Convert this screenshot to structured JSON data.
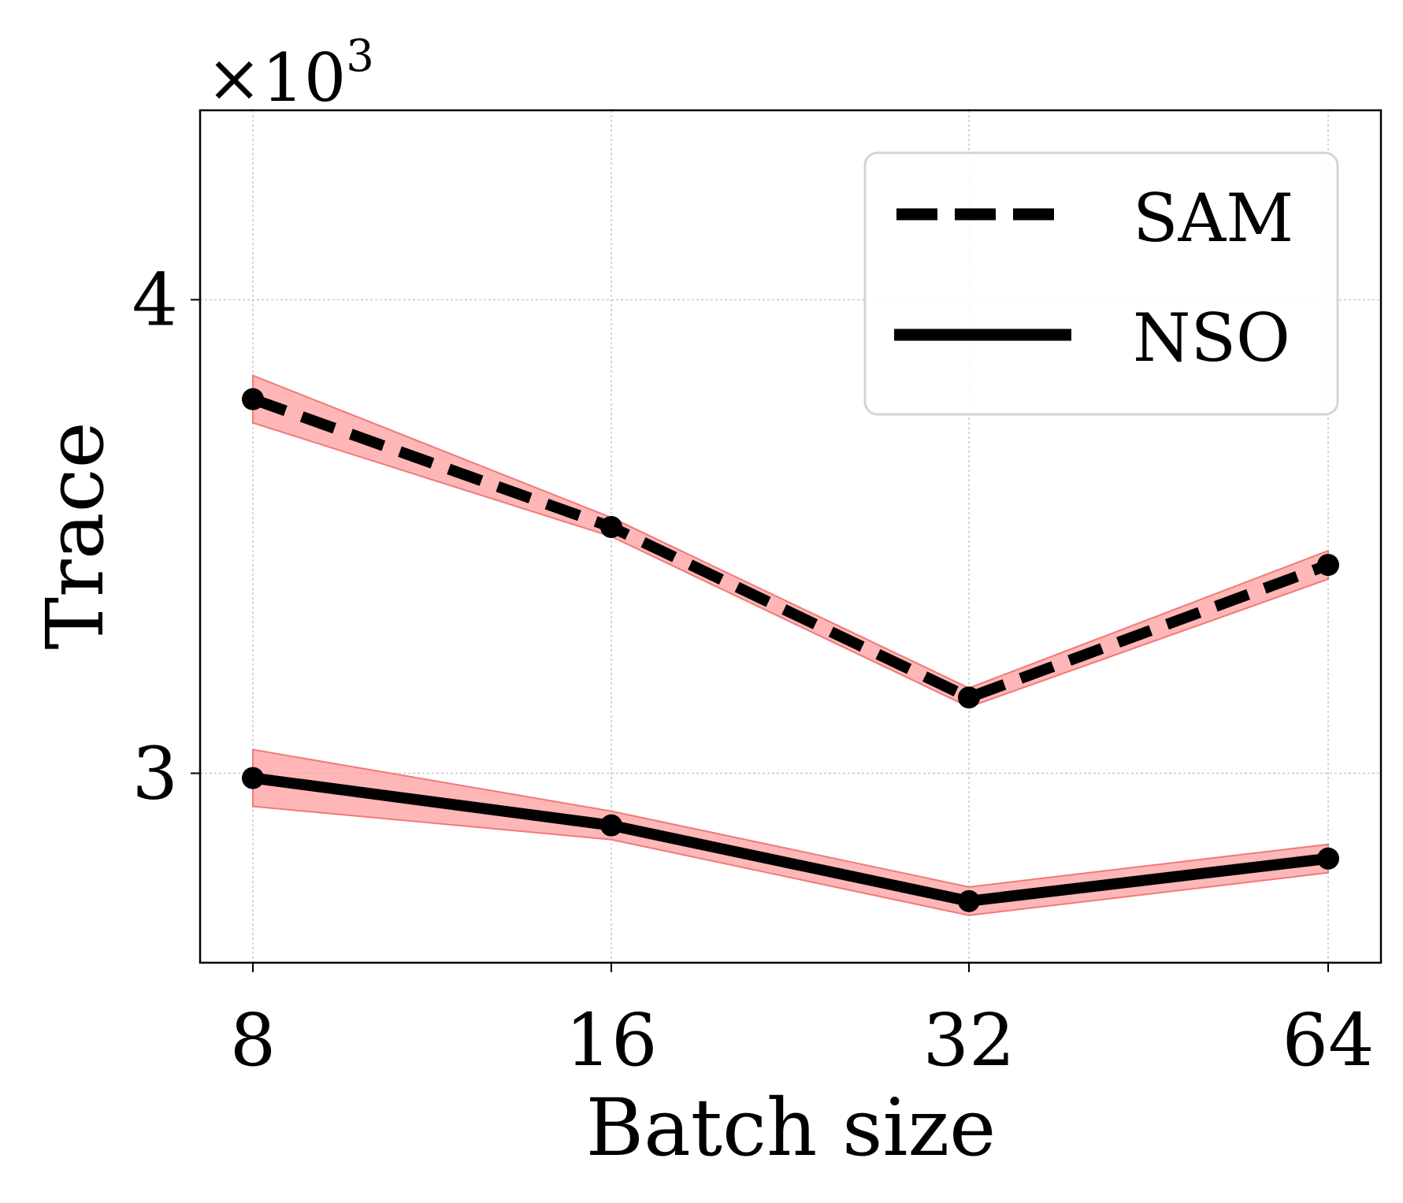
{
  "chart_data": {
    "type": "line",
    "x_categories": [
      "8",
      "16",
      "32",
      "64"
    ],
    "xlabel": "Batch size",
    "ylabel": "Trace",
    "y_multiplier": "×10",
    "y_multiplier_exponent": "3",
    "ylim": [
      2.6,
      4.4
    ],
    "yticks": [
      3,
      4
    ],
    "ytick_labels": [
      "3",
      "4"
    ],
    "grid": true,
    "legend_position": "top-right",
    "series": [
      {
        "name": "SAM",
        "style": "dashed",
        "values": [
          3.79,
          3.52,
          3.16,
          3.44
        ],
        "band_halfwidth": [
          0.05,
          0.02,
          0.02,
          0.03
        ]
      },
      {
        "name": "NSO",
        "style": "solid",
        "values": [
          2.99,
          2.89,
          2.73,
          2.82
        ],
        "band_halfwidth": [
          0.06,
          0.03,
          0.03,
          0.03
        ]
      }
    ],
    "colors": {
      "line": "#000000",
      "band_fill": "#ff9e9e",
      "band_edge": "#f07a7a",
      "marker": "#000000",
      "grid": "#c8c8c8"
    }
  }
}
